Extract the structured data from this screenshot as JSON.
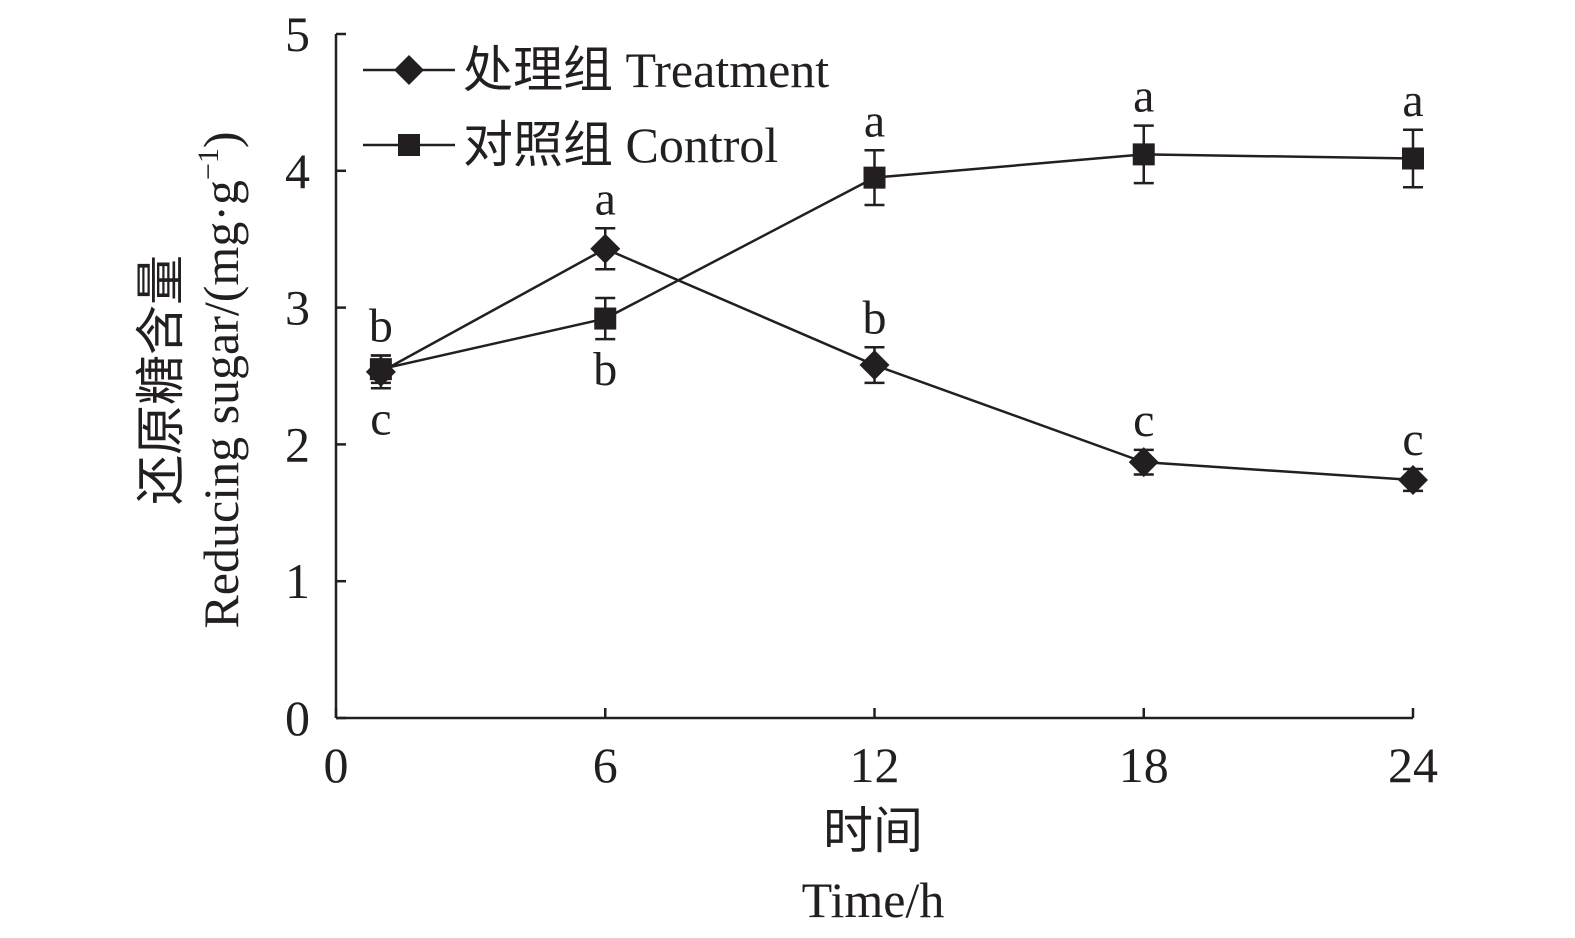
{
  "chart_data": {
    "type": "line",
    "xlabel_cn": "时间",
    "xlabel_en": "Time/h",
    "ylabel_cn": "还原糖含量",
    "ylabel_en_main": "Reducing sugar/(mg·g",
    "ylabel_en_sup": "−1",
    "ylabel_en_close": ")",
    "xlim": [
      0,
      24
    ],
    "ylim": [
      0,
      5
    ],
    "xticks": [
      "0",
      "6",
      "12",
      "18",
      "24"
    ],
    "yticks": [
      "0",
      "1",
      "2",
      "3",
      "4",
      "5"
    ],
    "grid": false,
    "legend_position": "top-left",
    "series": [
      {
        "name": "处理组 Treatment",
        "marker": "diamond",
        "x": [
          1,
          6,
          12,
          18,
          24
        ],
        "y": [
          2.53,
          3.43,
          2.58,
          1.87,
          1.74
        ],
        "error": [
          0.12,
          0.15,
          0.13,
          0.09,
          0.08
        ],
        "labels": [
          "c",
          "a",
          "b",
          "c",
          "c"
        ],
        "label_position": [
          "below",
          "above",
          "above",
          "above",
          "above"
        ]
      },
      {
        "name": "对照组 Control",
        "marker": "square",
        "x": [
          1,
          6,
          12,
          18,
          24
        ],
        "y": [
          2.55,
          2.92,
          3.95,
          4.12,
          4.09
        ],
        "error": [
          0.1,
          0.15,
          0.2,
          0.21,
          0.21
        ],
        "labels": [
          "b",
          "b",
          "a",
          "a",
          "a"
        ],
        "label_position": [
          "above",
          "below",
          "above",
          "above",
          "above"
        ]
      }
    ]
  }
}
